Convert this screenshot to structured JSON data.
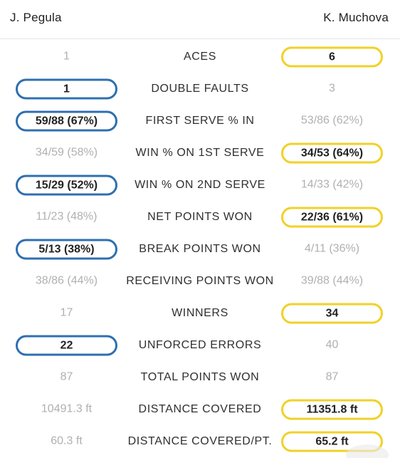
{
  "header": {
    "player1": "J. Pegula",
    "player2": "K. Muchova"
  },
  "colors": {
    "player1_highlight": "#2f6fb0",
    "player2_highlight": "#f1d128",
    "loser_text": "#b0b0b0"
  },
  "stats": [
    {
      "label": "ACES",
      "p1": "1",
      "p2": "6",
      "winner": "p2"
    },
    {
      "label": "DOUBLE FAULTS",
      "p1": "1",
      "p2": "3",
      "winner": "p1"
    },
    {
      "label": "FIRST SERVE % IN",
      "p1": "59/88 (67%)",
      "p2": "53/86 (62%)",
      "winner": "p1"
    },
    {
      "label": "WIN % ON 1ST SERVE",
      "p1": "34/59 (58%)",
      "p2": "34/53 (64%)",
      "winner": "p2"
    },
    {
      "label": "WIN % ON 2ND SERVE",
      "p1": "15/29 (52%)",
      "p2": "14/33 (42%)",
      "winner": "p1"
    },
    {
      "label": "NET POINTS WON",
      "p1": "11/23 (48%)",
      "p2": "22/36 (61%)",
      "winner": "p2"
    },
    {
      "label": "BREAK POINTS WON",
      "p1": "5/13 (38%)",
      "p2": "4/11 (36%)",
      "winner": "p1"
    },
    {
      "label": "RECEIVING POINTS WON",
      "p1": "38/86 (44%)",
      "p2": "39/88 (44%)",
      "winner": "none"
    },
    {
      "label": "WINNERS",
      "p1": "17",
      "p2": "34",
      "winner": "p2"
    },
    {
      "label": "UNFORCED ERRORS",
      "p1": "22",
      "p2": "40",
      "winner": "p1"
    },
    {
      "label": "TOTAL POINTS WON",
      "p1": "87",
      "p2": "87",
      "winner": "none"
    },
    {
      "label": "DISTANCE COVERED",
      "p1": "10491.3 ft",
      "p2": "11351.8 ft",
      "winner": "p2"
    },
    {
      "label": "DISTANCE COVERED/PT.",
      "p1": "60.3 ft",
      "p2": "65.2 ft",
      "winner": "p2"
    }
  ]
}
